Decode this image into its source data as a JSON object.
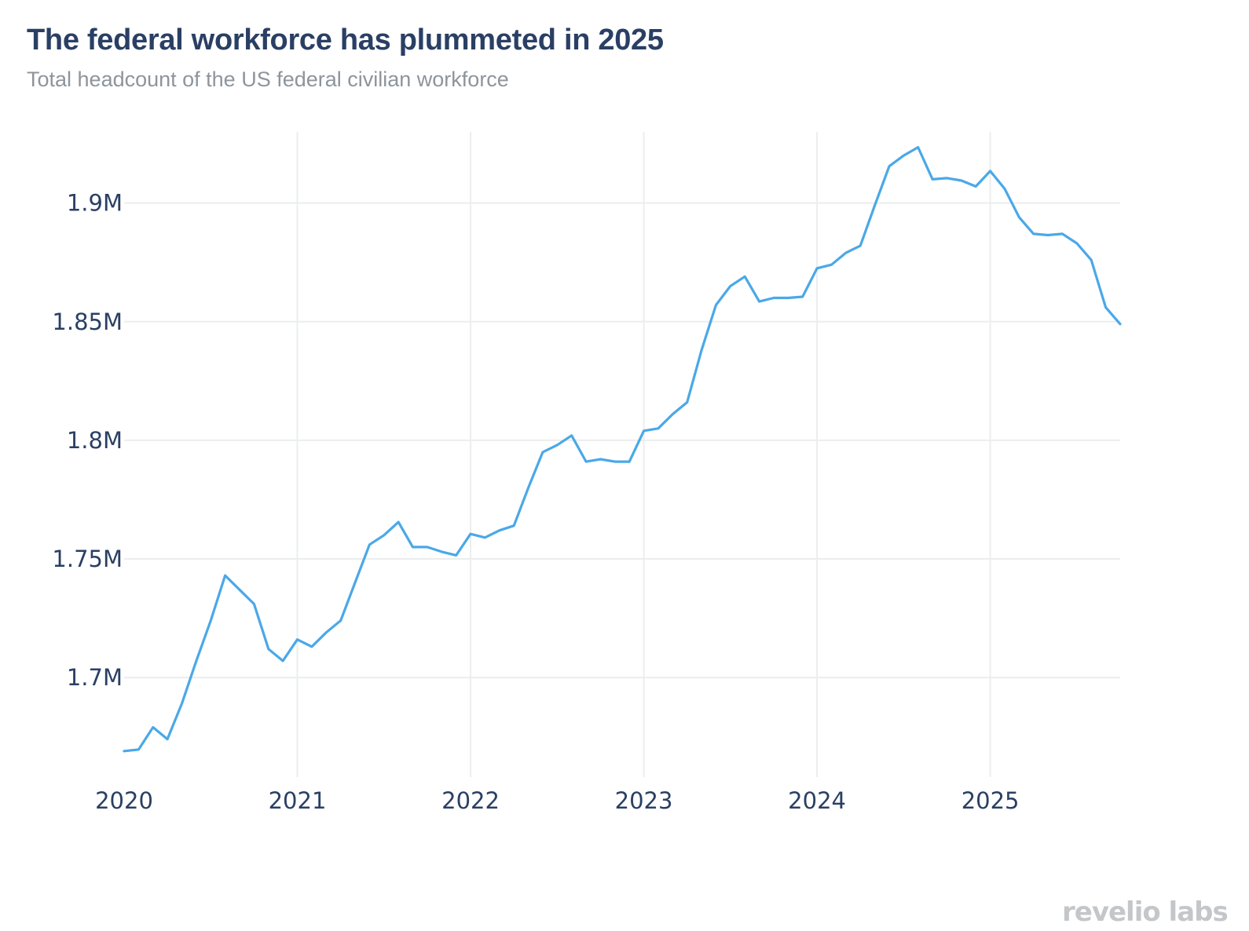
{
  "header": {
    "title": "The federal workforce has plummeted in 2025",
    "subtitle": "Total headcount of the US federal civilian workforce"
  },
  "logo": {
    "text": "revelio labs"
  },
  "colors": {
    "line": "#4aa8e8",
    "grid": "#ebedef",
    "text": "#2a3f64",
    "subtitle": "#8d959c"
  },
  "chart_data": {
    "type": "line",
    "title": "The federal workforce has plummeted in 2025",
    "subtitle": "Total headcount of the US federal civilian workforce",
    "xlabel": "",
    "ylabel": "",
    "grid": true,
    "x_ticks": [
      {
        "value": "2020-01",
        "label": "2020"
      },
      {
        "value": "2021-01",
        "label": "2021"
      },
      {
        "value": "2022-01",
        "label": "2022"
      },
      {
        "value": "2023-01",
        "label": "2023"
      },
      {
        "value": "2024-01",
        "label": "2024"
      },
      {
        "value": "2025-01",
        "label": "2025"
      }
    ],
    "y_ticks": [
      {
        "value": 1700000,
        "label": "1.7M"
      },
      {
        "value": 1750000,
        "label": "1.75M"
      },
      {
        "value": 1800000,
        "label": "1.8M"
      },
      {
        "value": 1850000,
        "label": "1.85M"
      },
      {
        "value": 1900000,
        "label": "1.9M"
      }
    ],
    "xlim": [
      "2020-01",
      "2025-10"
    ],
    "ylim": [
      1658000,
      1930000
    ],
    "series": [
      {
        "x": [
          "2020-01",
          "2020-02",
          "2020-03",
          "2020-04",
          "2020-05",
          "2020-06",
          "2020-07",
          "2020-08",
          "2020-09",
          "2020-10",
          "2020-11",
          "2020-12",
          "2021-01",
          "2021-02",
          "2021-03",
          "2021-04",
          "2021-05",
          "2021-06",
          "2021-07",
          "2021-08",
          "2021-09",
          "2021-10",
          "2021-11",
          "2021-12",
          "2022-01",
          "2022-02",
          "2022-03",
          "2022-04",
          "2022-05",
          "2022-06",
          "2022-07",
          "2022-08",
          "2022-09",
          "2022-10",
          "2022-11",
          "2022-12",
          "2023-01",
          "2023-02",
          "2023-03",
          "2023-04",
          "2023-05",
          "2023-06",
          "2023-07",
          "2023-08",
          "2023-09",
          "2023-10",
          "2023-11",
          "2023-12",
          "2024-01",
          "2024-02",
          "2024-03",
          "2024-04",
          "2024-05",
          "2024-06",
          "2024-07",
          "2024-08",
          "2024-09",
          "2024-10",
          "2024-11",
          "2024-12",
          "2025-01",
          "2025-02",
          "2025-03",
          "2025-04",
          "2025-05",
          "2025-06",
          "2025-07",
          "2025-08",
          "2025-09",
          "2025-10"
        ],
        "values": [
          1669000,
          1669600,
          1679000,
          1674000,
          1689000,
          1707000,
          1724000,
          1743000,
          1737000,
          1731000,
          1712000,
          1707000,
          1716000,
          1713000,
          1719000,
          1724000,
          1740000,
          1756000,
          1760000,
          1765500,
          1755000,
          1755000,
          1753000,
          1751500,
          1760500,
          1759000,
          1762000,
          1764000,
          1780000,
          1795000,
          1798000,
          1802000,
          1791000,
          1792000,
          1791000,
          1791000,
          1804000,
          1805000,
          1811000,
          1816000,
          1838000,
          1857000,
          1865000,
          1869000,
          1858500,
          1860000,
          1860000,
          1860500,
          1872500,
          1874000,
          1879000,
          1882000,
          1899000,
          1915500,
          1920000,
          1923500,
          1910000,
          1910500,
          1909500,
          1907000,
          1913500,
          1906000,
          1894000,
          1887000,
          1886500,
          1887000,
          1883000,
          1876000,
          1856000,
          1849000
        ]
      }
    ]
  }
}
